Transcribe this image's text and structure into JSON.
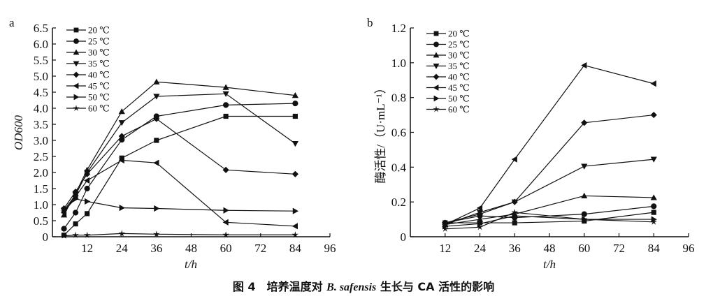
{
  "caption": {
    "prefix": "图 4　培养温度对 ",
    "species": "B. safensis",
    "suffix": " 生长与 CA 活性的影响"
  },
  "chart_data": [
    {
      "type": "line",
      "panel": "a",
      "ylabel": "OD600",
      "xlabel": "t/h",
      "xlim": [
        0,
        96
      ],
      "ylim": [
        0,
        6.5
      ],
      "xticks": [
        "12",
        "24",
        "36",
        "48",
        "60",
        "72",
        "84",
        "96"
      ],
      "yticks": [
        "0",
        "0.5",
        "1.0",
        "1.5",
        "2.0",
        "2.5",
        "3.0",
        "3.5",
        "4.0",
        "4.5",
        "5.0",
        "5.5",
        "6.0",
        "6.5"
      ],
      "x": [
        4,
        8,
        12,
        24,
        36,
        60,
        84
      ],
      "legend_position": "top-left",
      "series": [
        {
          "name": "20 ℃",
          "marker": "square",
          "values": [
            0.05,
            0.4,
            0.72,
            2.45,
            3.0,
            3.75,
            3.75
          ]
        },
        {
          "name": "25 ℃",
          "marker": "circle",
          "values": [
            0.25,
            0.75,
            1.5,
            3.02,
            3.75,
            4.1,
            4.15
          ]
        },
        {
          "name": "30 ℃",
          "marker": "triangle-up",
          "values": [
            0.68,
            1.35,
            2.08,
            3.9,
            4.82,
            4.65,
            4.4
          ]
        },
        {
          "name": "35 ℃",
          "marker": "triangle-down",
          "values": [
            0.82,
            1.3,
            2.0,
            3.55,
            4.37,
            4.45,
            2.9
          ]
        },
        {
          "name": "40 ℃",
          "marker": "diamond",
          "values": [
            0.88,
            1.4,
            1.95,
            3.13,
            3.67,
            2.08,
            1.95
          ]
        },
        {
          "name": "45 ℃",
          "marker": "triangle-left",
          "values": [
            0.75,
            1.25,
            1.75,
            2.38,
            2.3,
            0.45,
            0.33
          ]
        },
        {
          "name": "50 ℃",
          "marker": "triangle-right",
          "values": [
            0.82,
            1.18,
            1.1,
            0.9,
            0.88,
            0.82,
            0.8
          ]
        },
        {
          "name": "60 ℃",
          "marker": "star",
          "values": [
            0.03,
            0.05,
            0.05,
            0.1,
            0.08,
            0.06,
            0.06
          ]
        }
      ]
    },
    {
      "type": "line",
      "panel": "b",
      "ylabel": "酶活性/（U·mL⁻¹）",
      "xlabel": "t/h",
      "xlim": [
        0,
        96
      ],
      "ylim": [
        0,
        1.2
      ],
      "xticks": [
        "12",
        "24",
        "36",
        "48",
        "60",
        "72",
        "84",
        "96"
      ],
      "yticks": [
        "0",
        "0.2",
        "0.4",
        "0.6",
        "0.8",
        "1.0",
        "1.2"
      ],
      "x": [
        12,
        24,
        36,
        60,
        84
      ],
      "legend_position": "top-left",
      "series": [
        {
          "name": "20 ℃",
          "marker": "square",
          "values": [
            0.08,
            0.08,
            0.08,
            0.09,
            0.14
          ]
        },
        {
          "name": "25 ℃",
          "marker": "circle",
          "values": [
            0.08,
            0.12,
            0.11,
            0.13,
            0.175
          ]
        },
        {
          "name": "30 ℃",
          "marker": "triangle-up",
          "values": [
            0.07,
            0.1,
            0.13,
            0.235,
            0.225
          ]
        },
        {
          "name": "35 ℃",
          "marker": "triangle-down",
          "values": [
            0.07,
            0.14,
            0.2,
            0.405,
            0.445
          ]
        },
        {
          "name": "40 ℃",
          "marker": "diamond",
          "values": [
            0.08,
            0.13,
            0.2,
            0.655,
            0.7
          ]
        },
        {
          "name": "45 ℃",
          "marker": "triangle-left",
          "values": [
            0.07,
            0.165,
            0.445,
            0.985,
            0.88
          ]
        },
        {
          "name": "50 ℃",
          "marker": "triangle-right",
          "values": [
            0.06,
            0.075,
            0.12,
            0.1,
            0.1
          ]
        },
        {
          "name": "60 ℃",
          "marker": "star",
          "values": [
            0.045,
            0.055,
            0.14,
            0.1,
            0.085
          ]
        }
      ]
    }
  ]
}
